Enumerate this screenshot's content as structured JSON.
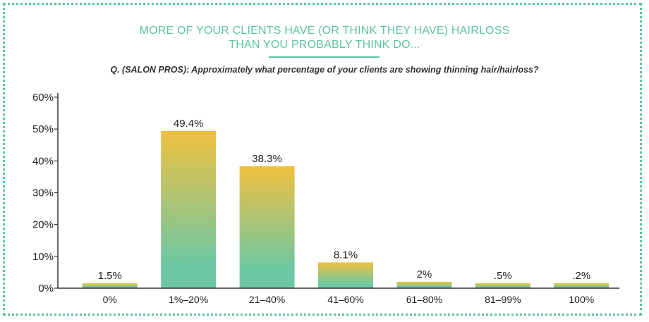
{
  "header": {
    "title_line1": "MORE OF YOUR CLIENTS HAVE (OR THINK THEY HAVE) HAIRLOSS",
    "title_line2": "THAN YOU PROBABLY THINK DO...",
    "question": "Q. (SALON PROS): Approximately what percentage of your clients are showing thinning hair/hairloss?"
  },
  "colors": {
    "accent": "#5cc4a0",
    "bar_top": "#f0c040",
    "bar_bottom": "#6cc8a4",
    "axis": "#333333"
  },
  "chart_data": {
    "type": "bar",
    "title": "MORE OF YOUR CLIENTS HAVE (OR THINK THEY HAVE) HAIRLOSS THAN YOU PROBABLY THINK DO...",
    "xlabel": "",
    "ylabel": "",
    "ylim": [
      0,
      60
    ],
    "yticks": [
      0,
      10,
      20,
      30,
      40,
      50,
      60
    ],
    "ytick_labels": [
      "0%",
      "10%",
      "20%",
      "30%",
      "40%",
      "50%",
      "60%"
    ],
    "categories": [
      "0%",
      "1%–20%",
      "21–40%",
      "41–60%",
      "61–80%",
      "81–99%",
      "100%"
    ],
    "values": [
      1.5,
      49.4,
      38.3,
      8.1,
      2,
      0.5,
      0.2
    ],
    "value_labels": [
      "1.5%",
      "49.4%",
      "38.3%",
      "8.1%",
      "2%",
      ".5%",
      ".2%"
    ],
    "grid": false,
    "legend": "none"
  }
}
